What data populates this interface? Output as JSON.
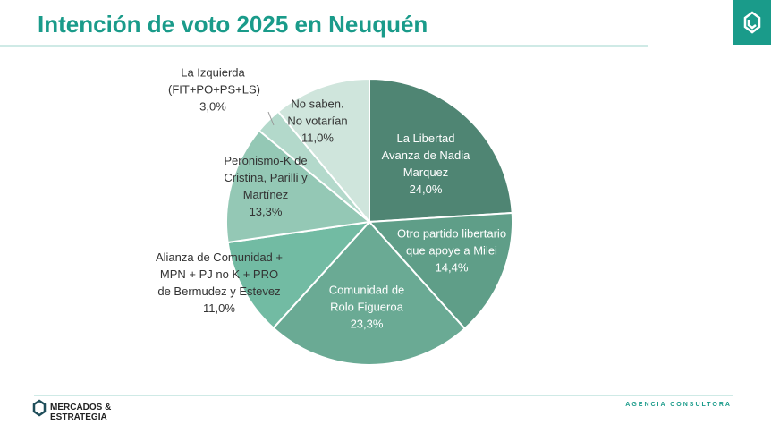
{
  "header": {
    "title": "Intención de voto 2025 en Neuquén"
  },
  "chart_data": {
    "type": "pie",
    "categories": [
      "La Libertad Avanza de Nadia Marquez",
      "Otro partido libertario que apoye a Milei",
      "Comunidad de Rolo Figueroa",
      "Alianza de Comunidad + MPN + PJ no K + PRO de Bermudez y Estevez",
      "Peronismo-K de Cristina, Parilli y Martínez",
      "La Izquierda (FIT+PO+PS+LS)",
      "No saben. No votarían"
    ],
    "values": [
      24.0,
      14.4,
      23.3,
      11.0,
      13.3,
      3.0,
      11.0
    ],
    "value_labels": [
      "24,0%",
      "14,4%",
      "23,3%",
      "11,0%",
      "13,3%",
      "3,0%",
      "11,0%"
    ],
    "colors": [
      "#4f8573",
      "#5f9e88",
      "#6aaa94",
      "#72bba3",
      "#94c8b5",
      "#b3d9cb",
      "#cfe5dc"
    ]
  },
  "footer": {
    "brand": [
      "MERCADOS &",
      "ESTRATEGIA"
    ],
    "tagline": "AGENCIA CONSULTORA"
  }
}
